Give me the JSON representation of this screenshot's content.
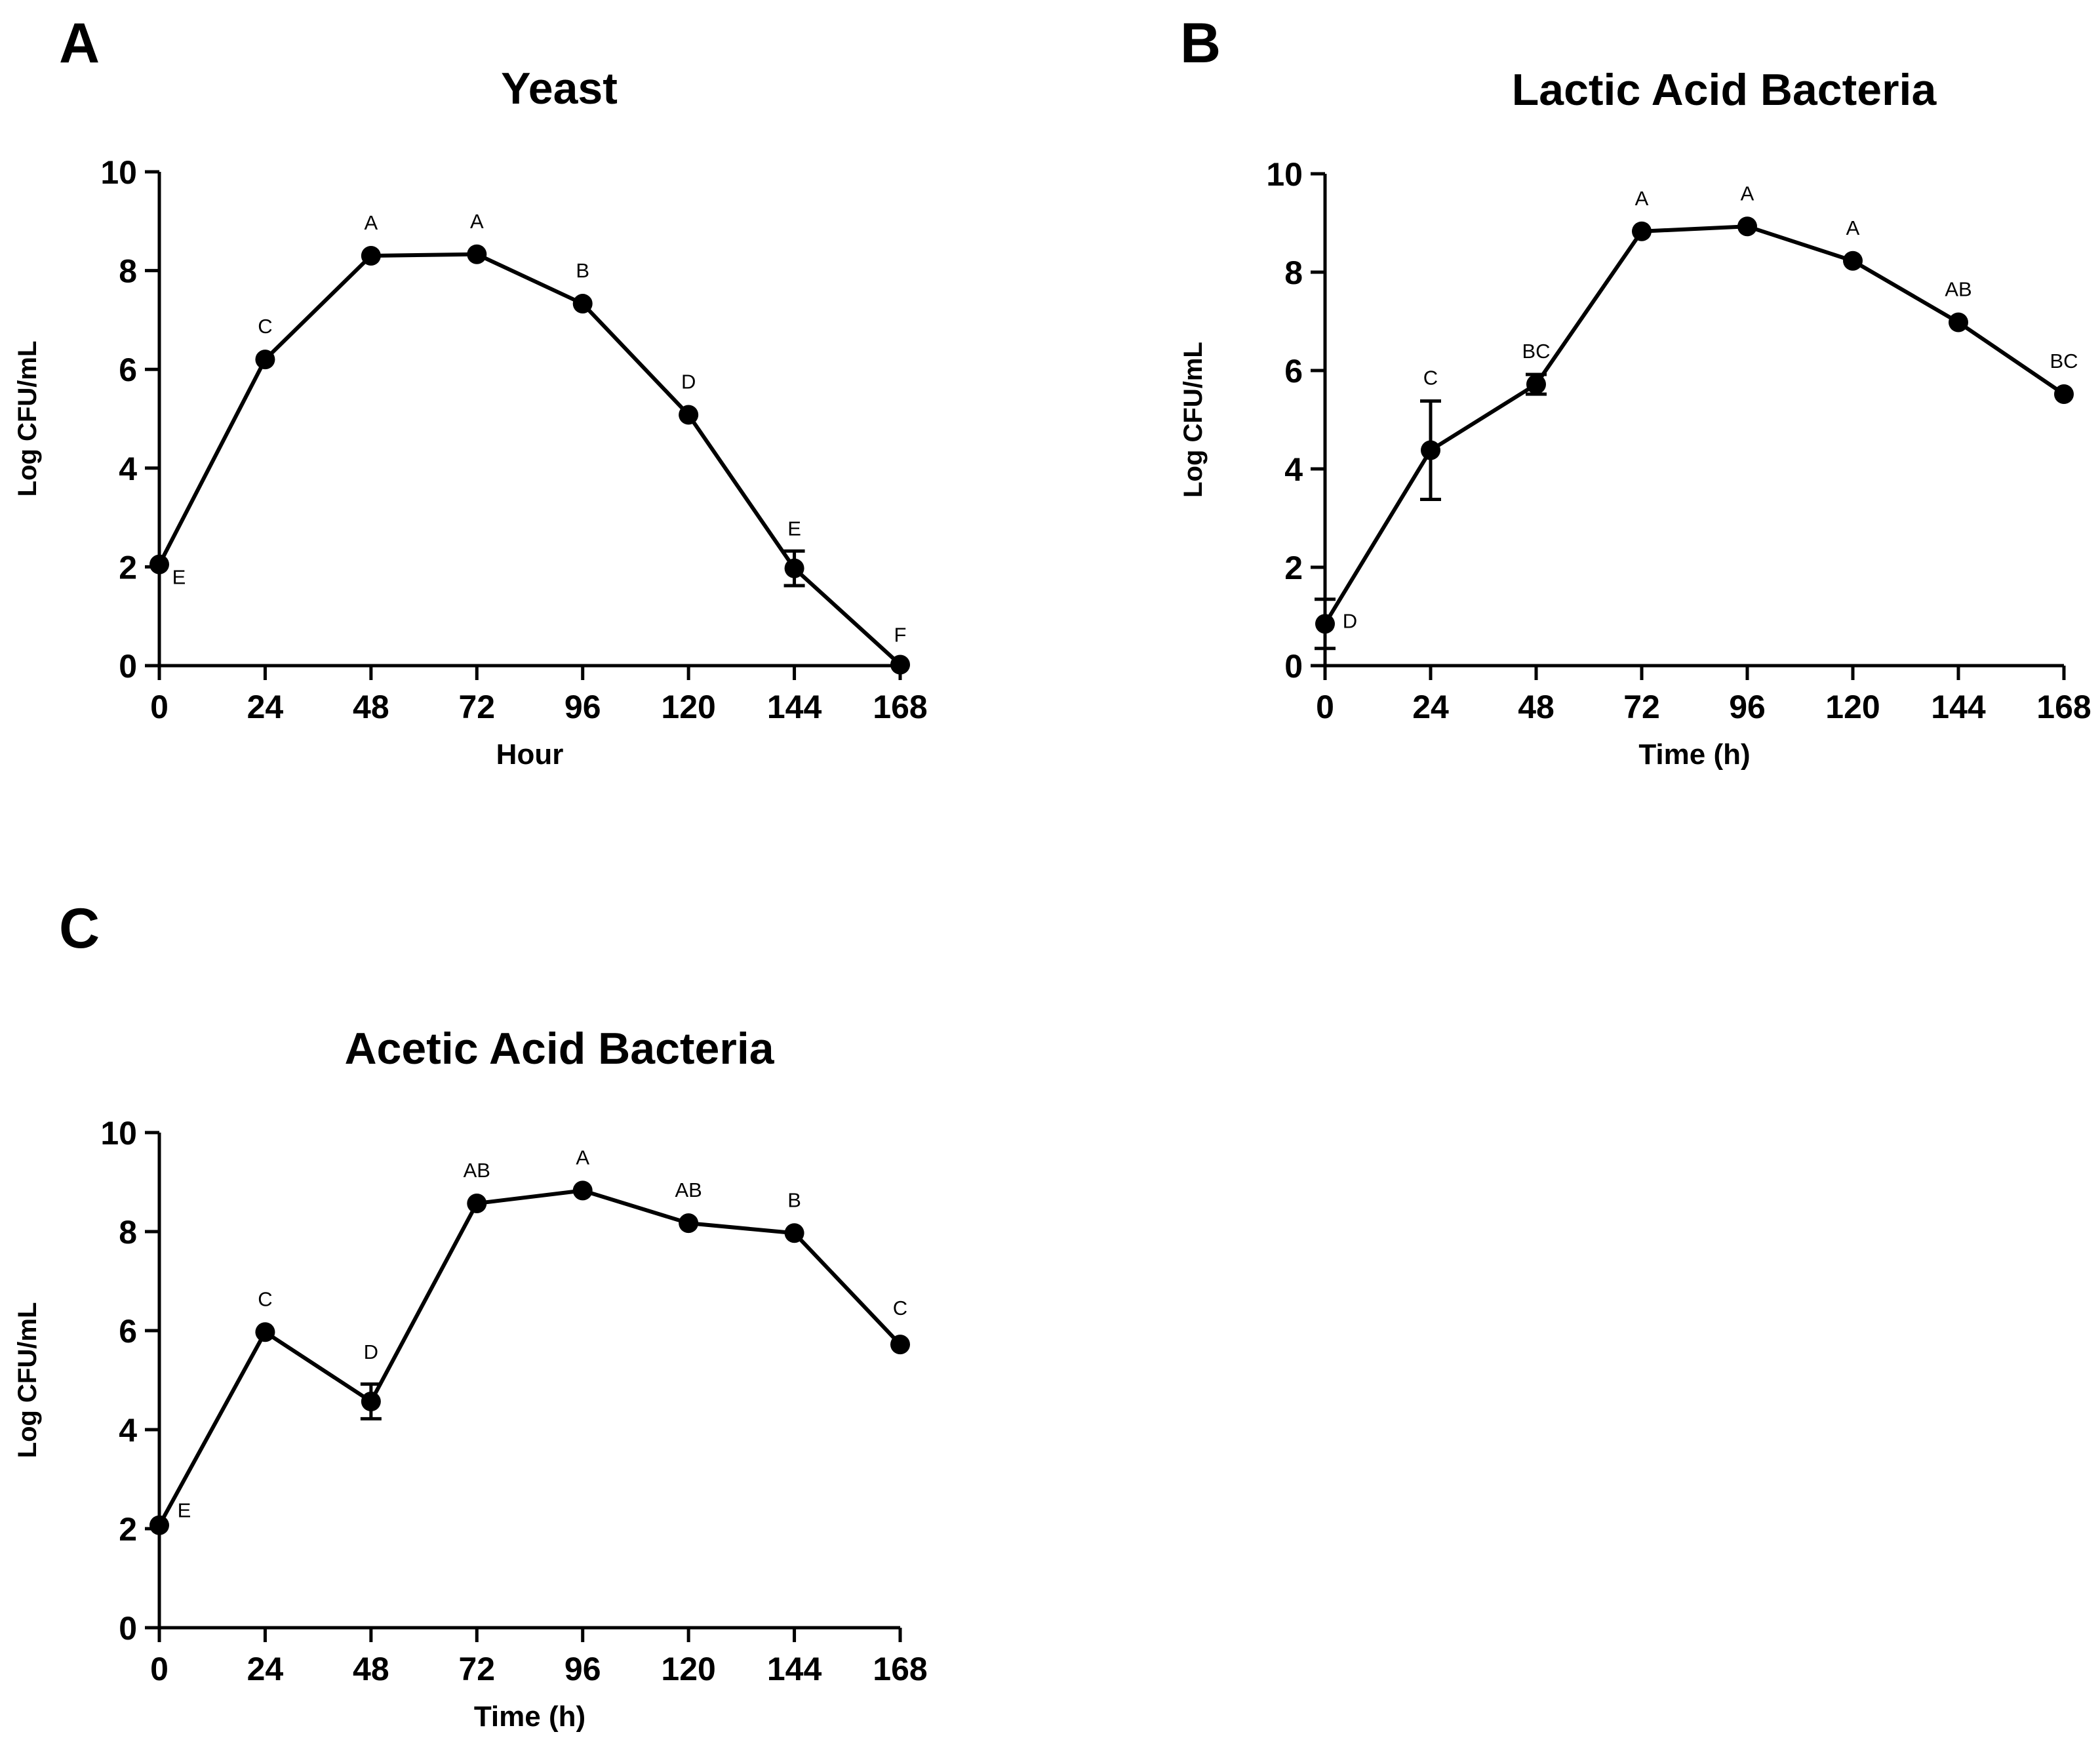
{
  "chart_data": [
    {
      "type": "line",
      "panel": "A",
      "title": "Yeast",
      "xlabel": "Hour",
      "ylabel": "Log CFU/mL",
      "x": [
        0,
        24,
        48,
        72,
        96,
        120,
        144,
        168
      ],
      "y": [
        2.05,
        6.2,
        8.3,
        8.33,
        7.33,
        5.08,
        1.97,
        0.02
      ],
      "err": [
        0,
        0,
        0,
        0,
        0,
        0,
        0.35,
        0
      ],
      "annotations": [
        "E",
        "C",
        "A",
        "A",
        "B",
        "D",
        "E",
        "F"
      ],
      "xticks": [
        "0",
        "24",
        "48",
        "72",
        "96",
        "120",
        "144",
        "168"
      ],
      "yticks": [
        "0",
        "2",
        "4",
        "6",
        "8",
        "10"
      ],
      "xlim": [
        0,
        168
      ],
      "ylim": [
        0,
        10
      ]
    },
    {
      "type": "line",
      "panel": "B",
      "title": "Lactic Acid Bacteria",
      "xlabel": "Time (h)",
      "ylabel": "Log CFU/mL",
      "x": [
        0,
        24,
        48,
        72,
        96,
        120,
        144,
        168
      ],
      "y": [
        0.85,
        4.38,
        5.72,
        8.83,
        8.93,
        8.23,
        6.98,
        5.52
      ],
      "err": [
        0.5,
        1.0,
        0.2,
        0,
        0,
        0,
        0,
        0
      ],
      "annotations": [
        "D",
        "C",
        "BC",
        "A",
        "A",
        "A",
        "AB",
        "BC"
      ],
      "xticks": [
        "0",
        "24",
        "48",
        "72",
        "96",
        "120",
        "144",
        "168"
      ],
      "yticks": [
        "0",
        "2",
        "4",
        "6",
        "8",
        "10"
      ],
      "xlim": [
        0,
        168
      ],
      "ylim": [
        0,
        10
      ]
    },
    {
      "type": "line",
      "panel": "C",
      "title": "Acetic Acid Bacteria",
      "xlabel": "Time (h)",
      "ylabel": "Log CFU/mL",
      "x": [
        0,
        24,
        48,
        72,
        96,
        120,
        144,
        168
      ],
      "y": [
        2.07,
        5.97,
        4.57,
        8.57,
        8.83,
        8.17,
        7.97,
        5.72
      ],
      "err": [
        0,
        0,
        0.35,
        0,
        0,
        0,
        0,
        0
      ],
      "annotations": [
        "E",
        "C",
        "D",
        "AB",
        "A",
        "AB",
        "B",
        "C"
      ],
      "xticks": [
        "0",
        "24",
        "48",
        "72",
        "96",
        "120",
        "144",
        "168"
      ],
      "yticks": [
        "0",
        "2",
        "4",
        "6",
        "8",
        "10"
      ],
      "xlim": [
        0,
        168
      ],
      "ylim": [
        0,
        10
      ]
    }
  ]
}
